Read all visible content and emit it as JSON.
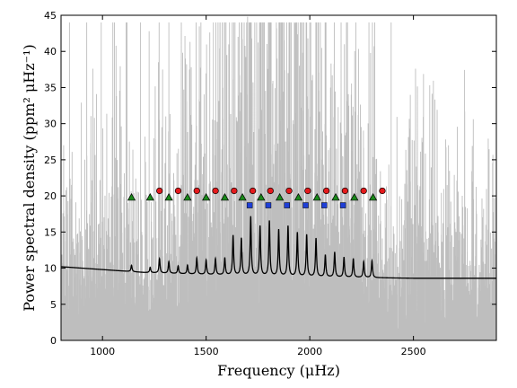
{
  "chart_data": {
    "type": "line",
    "xlabel": "Frequency (μHz)",
    "ylabel": "Power spectral density (ppm² μHz⁻¹)",
    "xlim": [
      800,
      2900
    ],
    "ylim": [
      0,
      45
    ],
    "x_ticks": [
      1000,
      1500,
      2000,
      2500
    ],
    "y_ticks": [
      0,
      5,
      10,
      15,
      20,
      25,
      30,
      35,
      40,
      45
    ],
    "grid": false,
    "colors": {
      "raw_spectrum": "#bebebe",
      "fit": "#000000",
      "circles": "#e41a1c",
      "triangles": "#1a8a1a",
      "squares": "#1f3fd6"
    },
    "series": [
      {
        "kind": "raw_power_spectrum",
        "noise_floor": 8.6,
        "extreme_peaks": [
          {
            "x": 1225,
            "y": 42.8
          },
          {
            "x": 1270,
            "y": 38.5
          },
          {
            "x": 1290,
            "y": 37.5
          },
          {
            "x": 1400,
            "y": 39.0
          },
          {
            "x": 1600,
            "y": 39.5
          },
          {
            "x": 1700,
            "y": 44.8
          },
          {
            "x": 1720,
            "y": 41.8
          },
          {
            "x": 1760,
            "y": 40.5
          },
          {
            "x": 1800,
            "y": 40.2
          },
          {
            "x": 1840,
            "y": 43.2
          },
          {
            "x": 1900,
            "y": 41.0
          },
          {
            "x": 1950,
            "y": 38.0
          },
          {
            "x": 2010,
            "y": 36.0
          },
          {
            "x": 2100,
            "y": 35.0
          },
          {
            "x": 2200,
            "y": 34.0
          }
        ]
      },
      {
        "kind": "fitted_model",
        "background": [
          {
            "x": 800,
            "y": 10.2
          },
          {
            "x": 1000,
            "y": 9.8
          },
          {
            "x": 1200,
            "y": 9.4
          },
          {
            "x": 1500,
            "y": 9.1
          },
          {
            "x": 2000,
            "y": 8.8
          },
          {
            "x": 2500,
            "y": 8.6
          },
          {
            "x": 2900,
            "y": 8.6
          }
        ],
        "peaks": [
          {
            "x": 1140,
            "y": 10.4
          },
          {
            "x": 1230,
            "y": 10.1
          },
          {
            "x": 1275,
            "y": 11.3
          },
          {
            "x": 1320,
            "y": 10.9
          },
          {
            "x": 1365,
            "y": 10.3
          },
          {
            "x": 1410,
            "y": 10.4
          },
          {
            "x": 1455,
            "y": 11.4
          },
          {
            "x": 1500,
            "y": 11.1
          },
          {
            "x": 1545,
            "y": 11.3
          },
          {
            "x": 1590,
            "y": 11.4
          },
          {
            "x": 1630,
            "y": 14.5
          },
          {
            "x": 1670,
            "y": 14.1
          },
          {
            "x": 1715,
            "y": 17.1
          },
          {
            "x": 1760,
            "y": 15.8
          },
          {
            "x": 1805,
            "y": 16.5
          },
          {
            "x": 1850,
            "y": 15.3
          },
          {
            "x": 1895,
            "y": 15.8
          },
          {
            "x": 1940,
            "y": 14.9
          },
          {
            "x": 1985,
            "y": 14.6
          },
          {
            "x": 2030,
            "y": 14.1
          },
          {
            "x": 2075,
            "y": 11.8
          },
          {
            "x": 2120,
            "y": 12.2
          },
          {
            "x": 2165,
            "y": 11.5
          },
          {
            "x": 2210,
            "y": 11.3
          },
          {
            "x": 2260,
            "y": 10.9
          },
          {
            "x": 2300,
            "y": 11.0
          }
        ]
      },
      {
        "kind": "circle_markers",
        "y": 20.7,
        "x": [
          1275,
          1365,
          1455,
          1545,
          1635,
          1725,
          1810,
          1900,
          1990,
          2080,
          2170,
          2260,
          2350
        ]
      },
      {
        "kind": "triangle_markers",
        "y": 19.8,
        "x": [
          1140,
          1230,
          1320,
          1410,
          1500,
          1590,
          1675,
          1765,
          1855,
          1945,
          2035,
          2125,
          2215,
          2305
        ]
      },
      {
        "kind": "square_markers",
        "y": 18.7,
        "x": [
          1710,
          1800,
          1890,
          1980,
          2070,
          2160
        ]
      }
    ]
  }
}
